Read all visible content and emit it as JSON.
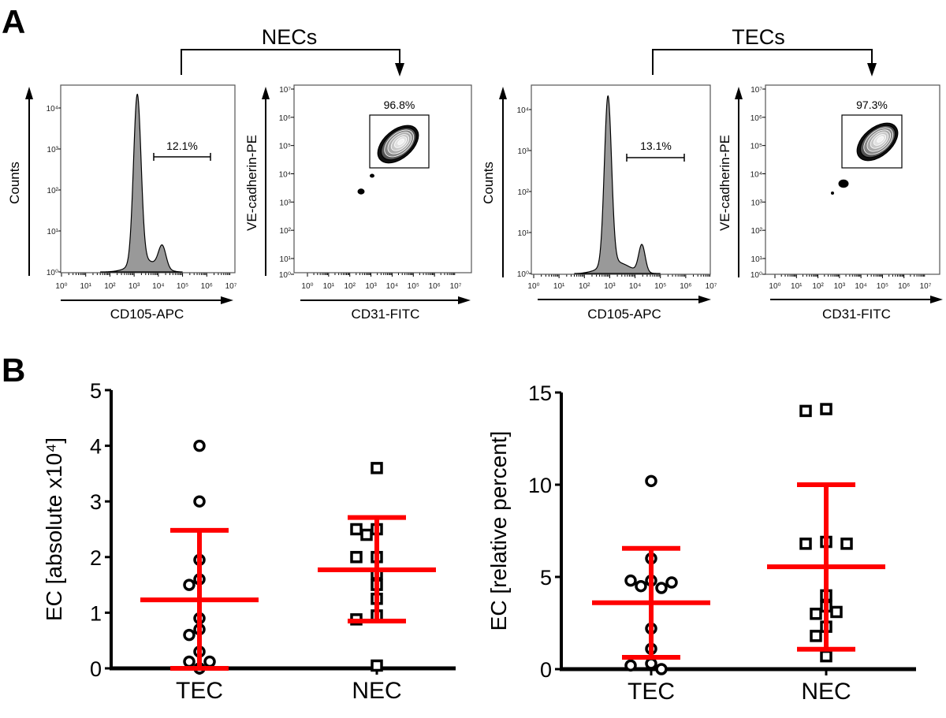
{
  "panel_letters": {
    "a": "A",
    "b": "B"
  },
  "gating_brackets": [
    {
      "label": "NECs"
    },
    {
      "label": "TECs"
    }
  ],
  "colors": {
    "histogram_fill": "#999999",
    "mean_sd_bars": "#ff0000",
    "markers": "#000000"
  },
  "chart_data": [
    {
      "type": "histogram",
      "group": "NECs",
      "xlabel": "CD105-APC",
      "ylabel": "Counts",
      "x_scale": "log",
      "y_scale": "log",
      "xticks": [
        "10⁰",
        "10¹",
        "10²",
        "10³",
        "10⁴",
        "10⁵",
        "10⁶",
        "10⁷"
      ],
      "yticks": [
        "10⁰",
        "10¹",
        "10²",
        "10³",
        "10⁴"
      ],
      "gate_label": "12.1%",
      "gate_range": [
        "10⁴",
        "10⁶"
      ]
    },
    {
      "type": "contour",
      "group": "NECs",
      "xlabel": "CD31-FITC",
      "ylabel": "VE-cadherin-PE",
      "x_scale": "log",
      "y_scale": "log",
      "xticks": [
        "10⁰",
        "10¹",
        "10²",
        "10³",
        "10⁴",
        "10⁵",
        "10⁶",
        "10⁷"
      ],
      "yticks": [
        "10⁰",
        "10¹",
        "10²",
        "10³",
        "10⁴",
        "10⁵",
        "10⁶",
        "10⁷"
      ],
      "gate_label": "96.8%"
    },
    {
      "type": "histogram",
      "group": "TECs",
      "xlabel": "CD105-APC",
      "ylabel": "Counts",
      "x_scale": "log",
      "y_scale": "log",
      "xticks": [
        "10⁰",
        "10¹",
        "10²",
        "10³",
        "10⁴",
        "10⁵",
        "10⁶",
        "10⁷"
      ],
      "yticks": [
        "10⁰",
        "10¹",
        "10²",
        "10³",
        "10⁴"
      ],
      "gate_label": "13.1%",
      "gate_range": [
        "10⁴",
        "10⁶"
      ]
    },
    {
      "type": "contour",
      "group": "TECs",
      "xlabel": "CD31-FITC",
      "ylabel": "VE-cadherin-PE",
      "x_scale": "log",
      "y_scale": "log",
      "xticks": [
        "10⁰",
        "10¹",
        "10²",
        "10³",
        "10⁴",
        "10⁵",
        "10⁶",
        "10⁷"
      ],
      "yticks": [
        "10⁰",
        "10¹",
        "10²",
        "10³",
        "10⁴",
        "10⁵",
        "10⁶",
        "10⁷"
      ],
      "gate_label": "97.3%"
    },
    {
      "type": "scatter",
      "ylabel": "EC [absolute x10⁴]",
      "ylim": [
        0,
        5
      ],
      "yticks": [
        "0",
        "1",
        "2",
        "3",
        "4",
        "5"
      ],
      "categories": [
        "TEC",
        "NEC"
      ],
      "series": [
        {
          "category": "TEC",
          "marker": "circle",
          "values": [
            4.0,
            3.0,
            1.95,
            1.6,
            1.5,
            0.9,
            0.7,
            0.6,
            0.3,
            0.12,
            0.12,
            0.0
          ],
          "mean": 1.23,
          "sd_upper": 2.48,
          "sd_lower": 0.0
        },
        {
          "category": "NEC",
          "marker": "square",
          "values": [
            3.6,
            2.5,
            2.5,
            2.4,
            2.0,
            2.0,
            1.7,
            1.5,
            1.25,
            0.95,
            0.88,
            0.05
          ],
          "mean": 1.77,
          "sd_upper": 2.71,
          "sd_lower": 0.85
        }
      ]
    },
    {
      "type": "scatter",
      "ylabel": "EC [relative percent]",
      "ylim": [
        0,
        15
      ],
      "yticks": [
        "0",
        "5",
        "10",
        "15"
      ],
      "categories": [
        "TEC",
        "NEC"
      ],
      "series": [
        {
          "category": "TEC",
          "marker": "circle",
          "values": [
            10.2,
            6.0,
            4.8,
            4.5,
            4.4,
            4.7,
            4.8,
            2.2,
            1.1,
            0.3,
            0.2,
            0.0
          ],
          "mean": 3.6,
          "sd_upper": 6.55,
          "sd_lower": 0.64
        },
        {
          "category": "NEC",
          "marker": "square",
          "values": [
            14.1,
            14.0,
            6.9,
            6.8,
            6.8,
            4.0,
            3.4,
            3.0,
            3.1,
            2.3,
            1.8,
            0.7
          ],
          "mean": 5.55,
          "sd_upper": 10.0,
          "sd_lower": 1.08
        }
      ]
    }
  ]
}
